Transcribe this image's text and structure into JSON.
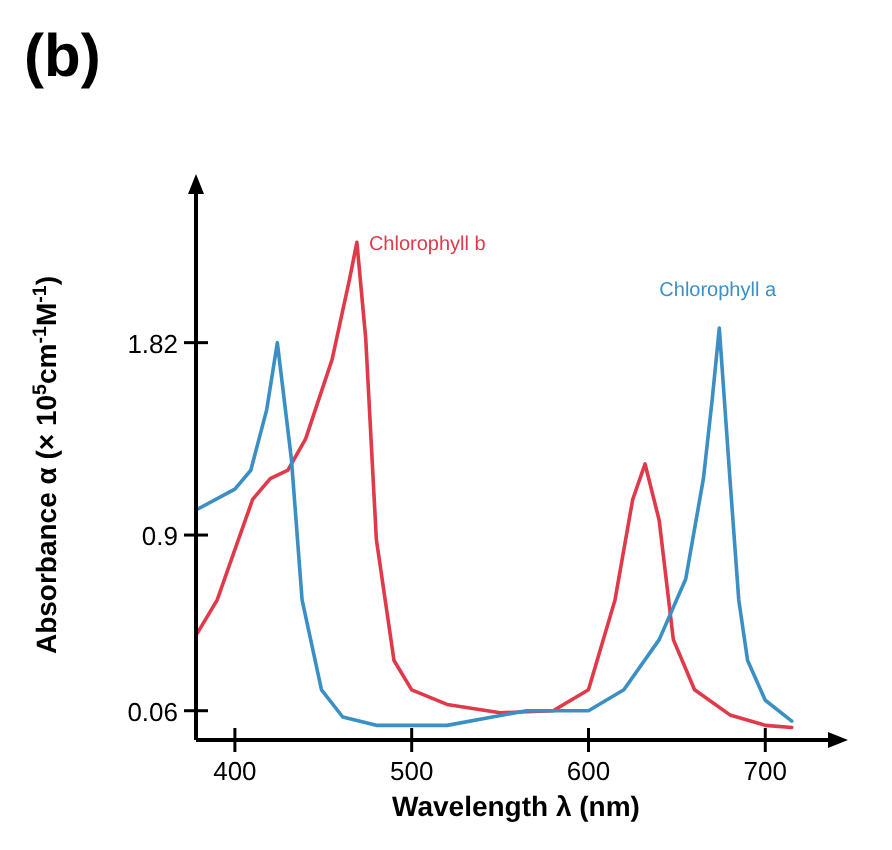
{
  "chart_data": {
    "type": "line",
    "title": "(b)",
    "xlabel": "Wavelength λ (nm)",
    "ylabel": "Absorbance α (× 10$^{5}$cm$^{-1}$M$^{-1}$)",
    "xlim": [
      378,
      740
    ],
    "xticks": [
      400,
      500,
      600,
      700
    ],
    "ylim": [
      -0.08,
      2.55
    ],
    "yticks": [
      0.06,
      0.9,
      1.82
    ],
    "grid": false,
    "line_style": "solid",
    "series": [
      {
        "name": "Chlorophyll b",
        "color": "#e0394a",
        "x": [
          378,
          390,
          400,
          410,
          420,
          430,
          440,
          455,
          465,
          469,
          474,
          480,
          490,
          500,
          520,
          550,
          580,
          600,
          615,
          625,
          632,
          640,
          648,
          660,
          680,
          700,
          715
        ],
        "values": [
          0.42,
          0.59,
          0.83,
          1.07,
          1.17,
          1.21,
          1.36,
          1.74,
          2.13,
          2.3,
          1.84,
          0.88,
          0.3,
          0.16,
          0.09,
          0.05,
          0.06,
          0.16,
          0.59,
          1.07,
          1.24,
          0.97,
          0.4,
          0.16,
          0.04,
          -0.01,
          -0.02
        ]
      },
      {
        "name": "Chlorophyll a",
        "color": "#3a8fc4",
        "x": [
          378,
          400,
          409,
          418,
          424,
          432,
          438,
          449,
          461,
          480,
          520,
          565,
          600,
          620,
          640,
          655,
          665,
          670,
          674,
          680,
          685,
          690,
          700,
          715
        ],
        "values": [
          1.02,
          1.12,
          1.21,
          1.5,
          1.82,
          1.26,
          0.59,
          0.16,
          0.03,
          -0.01,
          -0.01,
          0.06,
          0.06,
          0.16,
          0.4,
          0.69,
          1.17,
          1.55,
          1.89,
          1.17,
          0.59,
          0.3,
          0.11,
          0.01
        ]
      }
    ]
  }
}
